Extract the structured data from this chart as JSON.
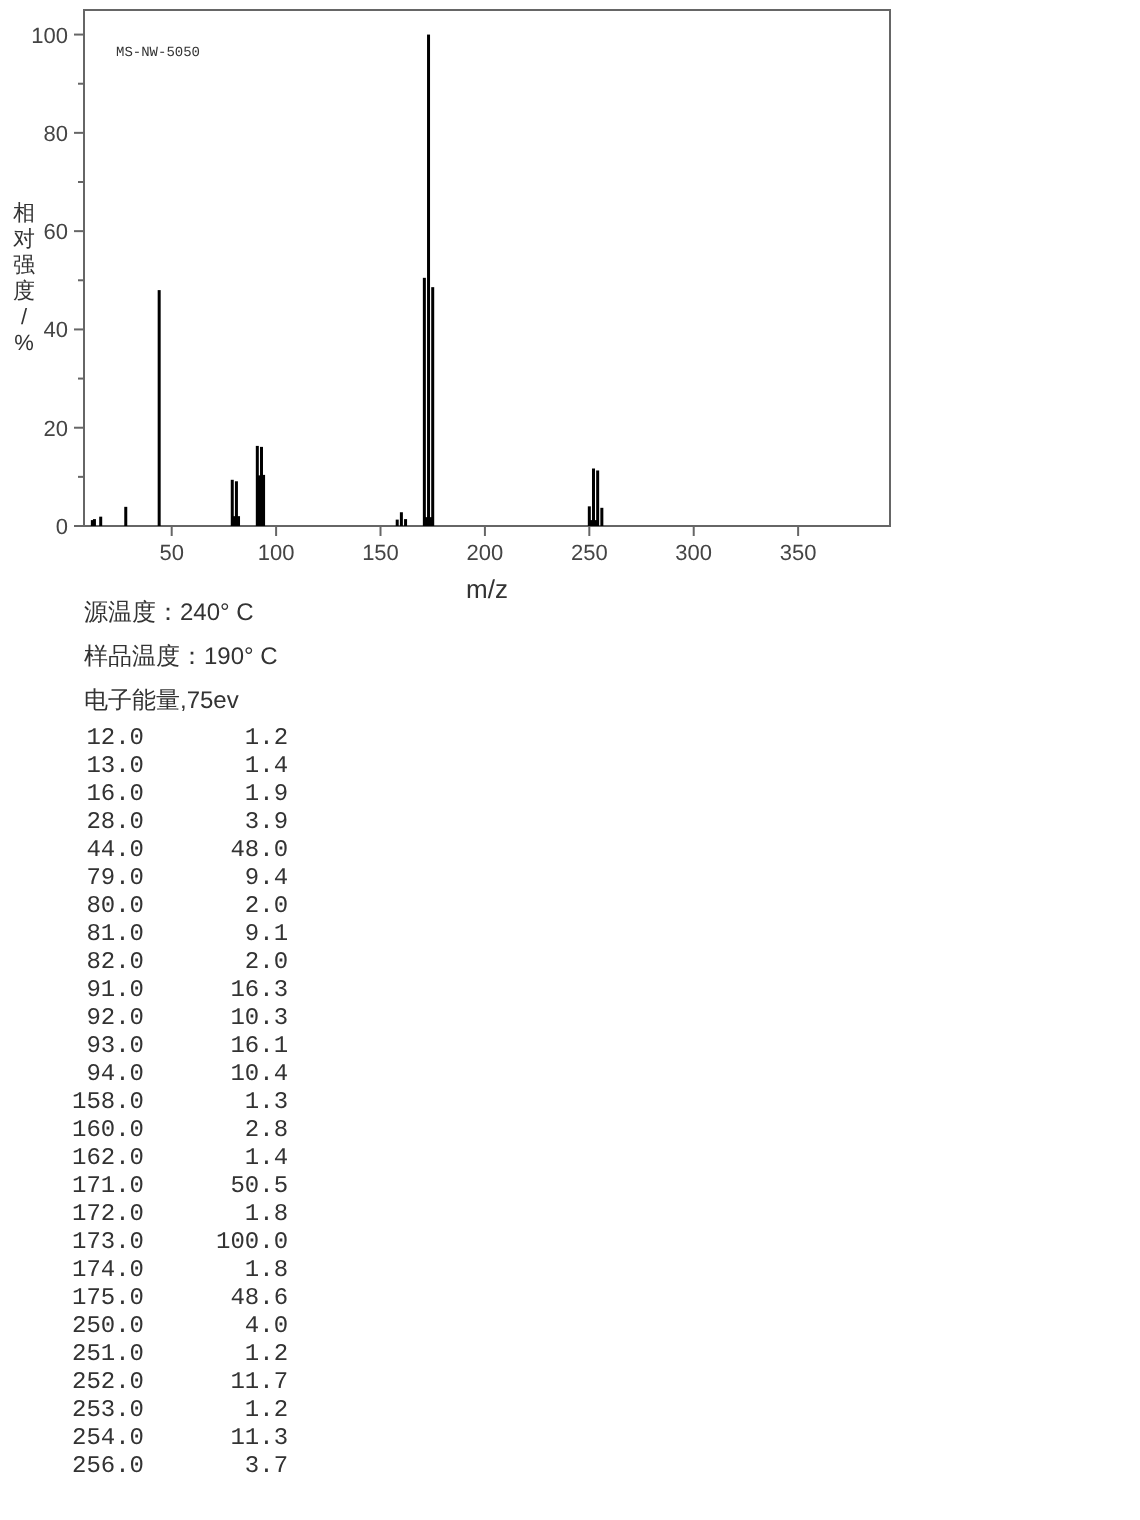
{
  "chart_data": {
    "type": "bar",
    "xlabel": "m/z",
    "ylabel": "相对强度/%",
    "x": [
      12,
      13,
      16,
      28,
      44,
      79,
      80,
      81,
      82,
      91,
      92,
      93,
      94,
      158,
      160,
      162,
      171,
      172,
      173,
      174,
      175,
      250,
      251,
      252,
      253,
      254,
      256
    ],
    "values": [
      1.2,
      1.4,
      1.9,
      3.9,
      48.0,
      9.4,
      2.0,
      9.1,
      2.0,
      16.3,
      10.3,
      16.1,
      10.4,
      1.3,
      2.8,
      1.4,
      50.5,
      1.8,
      100.0,
      1.8,
      48.6,
      4.0,
      1.2,
      11.7,
      1.2,
      11.3,
      3.7
    ],
    "color": "#000000",
    "xlim": [
      8,
      394
    ],
    "xticks": [
      50,
      100,
      150,
      200,
      250,
      300,
      350
    ],
    "ylim": [
      0,
      105
    ],
    "yticks": [
      0,
      {
        "value": 10,
        "label": null
      },
      20,
      {
        "value": 30,
        "label": null
      },
      40,
      {
        "value": 50,
        "label": null
      },
      60,
      {
        "value": 70,
        "label": null
      },
      80,
      {
        "value": 90,
        "label": null
      },
      100
    ],
    "annotations": [
      "MS-NW-5050",
      "源温度：240° C",
      "样品温度：190° C",
      "电子能量,75ev",
      " 12.0       1.2",
      " 13.0       1.4",
      " 16.0       1.9",
      " 28.0       3.9",
      " 44.0      48.0",
      " 79.0       9.4",
      " 80.0       2.0",
      " 81.0       9.1",
      " 82.0       2.0",
      " 91.0      16.3",
      " 92.0      10.3",
      " 93.0      16.1",
      " 94.0      10.4",
      "158.0       1.3",
      "160.0       2.8",
      "162.0       1.4",
      "171.0      50.5",
      "172.0       1.8",
      "173.0     100.0",
      "174.0       1.8",
      "175.0      48.6",
      "250.0       4.0",
      "251.0       1.2",
      "252.0      11.7",
      "253.0       1.2",
      "254.0      11.3",
      "256.0       3.7"
    ]
  }
}
